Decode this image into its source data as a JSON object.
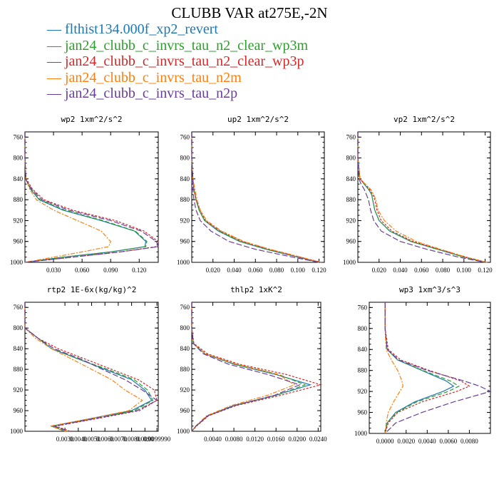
{
  "figure": {
    "title": "CLUBB VAR at275E,-2N"
  },
  "legend": [
    {
      "label": "flthist134.000f_xp2_revert",
      "color": "#1f77b4",
      "dash": "solid"
    },
    {
      "label": "jan24_clubb_c_invrs_tau_n2_clear_wp3m",
      "color": "#2ca02c",
      "dash": "6,3"
    },
    {
      "label": "jan24_clubb_c_invrs_tau_n2_clear_wp3p",
      "color": "#d62728",
      "dash": "3,2"
    },
    {
      "label": "jan24_clubb_c_invrs_tau_n2m",
      "color": "#ff7f0e",
      "dash": "6,2,2,2"
    },
    {
      "label": "jan24_clubb_c_invrs_tau_n2p",
      "color": "#6a3d9a",
      "dash": "8,3"
    }
  ],
  "chart_data": [
    {
      "type": "line",
      "title": "wp2  1xm^2/s^2",
      "xlim": [
        0,
        0.14
      ],
      "ylim": [
        1000,
        750
      ],
      "xticks": [
        0.03,
        0.06,
        0.09,
        0.12
      ],
      "xtick_labels": [
        "0.030",
        "0.060",
        "0.090",
        "0.120"
      ],
      "yticks": [
        760,
        800,
        840,
        880,
        920,
        960,
        1000
      ],
      "y": [
        750,
        800,
        840,
        845,
        860,
        880,
        900,
        920,
        940,
        960,
        970,
        980,
        990,
        1000
      ],
      "series": [
        {
          "x": [
            0,
            0,
            0.001,
            0.002,
            0.006,
            0.015,
            0.04,
            0.08,
            0.115,
            0.127,
            0.126,
            0.09,
            0.04,
            0
          ]
        },
        {
          "x": [
            0,
            0,
            0.001,
            0.002,
            0.006,
            0.016,
            0.042,
            0.082,
            0.116,
            0.128,
            0.127,
            0.09,
            0.04,
            0
          ]
        },
        {
          "x": [
            0,
            0,
            0.001,
            0.003,
            0.008,
            0.02,
            0.05,
            0.095,
            0.125,
            0.14,
            0.138,
            0.1,
            0.05,
            0
          ]
        },
        {
          "x": [
            0,
            0,
            0.001,
            0.002,
            0.005,
            0.012,
            0.03,
            0.055,
            0.08,
            0.09,
            0.088,
            0.06,
            0.03,
            0
          ]
        },
        {
          "x": [
            0,
            0,
            0.001,
            0.002,
            0.007,
            0.018,
            0.046,
            0.09,
            0.122,
            0.138,
            0.14,
            0.1,
            0.05,
            0
          ]
        }
      ]
    },
    {
      "type": "line",
      "title": "up2  1xm^2/s^2",
      "xlim": [
        0,
        0.125
      ],
      "ylim": [
        1000,
        750
      ],
      "xticks": [
        0.02,
        0.04,
        0.06,
        0.08,
        0.1,
        0.12
      ],
      "xtick_labels": [
        "0.020",
        "0.040",
        "0.060",
        "0.080",
        "0.100",
        "0.120"
      ],
      "yticks": [
        760,
        800,
        840,
        880,
        920,
        960,
        1000
      ],
      "y": [
        750,
        800,
        840,
        860,
        880,
        900,
        920,
        940,
        960,
        975,
        990,
        1000
      ],
      "series": [
        {
          "x": [
            0,
            0,
            0.001,
            0.002,
            0.004,
            0.007,
            0.012,
            0.025,
            0.045,
            0.07,
            0.1,
            0.12
          ]
        },
        {
          "x": [
            0,
            0,
            0.001,
            0.002,
            0.004,
            0.007,
            0.012,
            0.026,
            0.046,
            0.071,
            0.1,
            0.12
          ]
        },
        {
          "x": [
            0,
            0,
            0.001,
            0.002,
            0.004,
            0.008,
            0.013,
            0.027,
            0.048,
            0.073,
            0.102,
            0.122
          ]
        },
        {
          "x": [
            0,
            0,
            0.001,
            0.003,
            0.005,
            0.008,
            0.014,
            0.028,
            0.049,
            0.074,
            0.103,
            0.122
          ]
        },
        {
          "x": [
            0,
            0,
            0.001,
            0.001,
            0.002,
            0.004,
            0.008,
            0.018,
            0.035,
            0.06,
            0.095,
            0.12
          ]
        }
      ]
    },
    {
      "type": "line",
      "title": "vp2  1xm^2/s^2",
      "xlim": [
        0,
        0.125
      ],
      "ylim": [
        1000,
        750
      ],
      "xticks": [
        0.02,
        0.04,
        0.06,
        0.08,
        0.1,
        0.12
      ],
      "xtick_labels": [
        "0.020",
        "0.040",
        "0.060",
        "0.080",
        "0.100",
        "0.120"
      ],
      "yticks": [
        760,
        800,
        840,
        880,
        920,
        960,
        1000
      ],
      "y": [
        750,
        800,
        840,
        850,
        860,
        870,
        880,
        890,
        900,
        920,
        940,
        960,
        975,
        990,
        1000
      ],
      "series": [
        {
          "x": [
            0,
            0,
            0.002,
            0.006,
            0.01,
            0.013,
            0.014,
            0.015,
            0.016,
            0.02,
            0.03,
            0.05,
            0.075,
            0.1,
            0.12
          ]
        },
        {
          "x": [
            0,
            0,
            0.002,
            0.006,
            0.01,
            0.013,
            0.014,
            0.015,
            0.016,
            0.02,
            0.03,
            0.05,
            0.075,
            0.1,
            0.12
          ]
        },
        {
          "x": [
            0,
            0,
            0.002,
            0.007,
            0.011,
            0.014,
            0.016,
            0.017,
            0.018,
            0.022,
            0.032,
            0.052,
            0.077,
            0.102,
            0.122
          ]
        },
        {
          "x": [
            0,
            0,
            0.002,
            0.007,
            0.012,
            0.015,
            0.017,
            0.018,
            0.019,
            0.025,
            0.036,
            0.055,
            0.078,
            0.102,
            0.122
          ]
        },
        {
          "x": [
            0,
            0,
            0.001,
            0.003,
            0.006,
            0.008,
            0.01,
            0.011,
            0.012,
            0.015,
            0.022,
            0.04,
            0.065,
            0.095,
            0.12
          ]
        }
      ]
    },
    {
      "type": "line",
      "title": "rtp2  1E-6x(kg/kg)^2",
      "xlim": [
        0,
        0.01
      ],
      "ylim": [
        1000,
        750
      ],
      "xticks": [
        0.003,
        0.004,
        0.005,
        0.006,
        0.007,
        0.008,
        0.009,
        0.0099
      ],
      "xtick_labels": [
        "0.0030",
        "0.0040",
        "0.0050",
        "0.0060",
        "0.0070",
        "0.0080",
        "0.0090",
        "0.0099990"
      ],
      "yticks": [
        760,
        800,
        840,
        880,
        920,
        960,
        1000
      ],
      "y": [
        750,
        800,
        820,
        840,
        860,
        880,
        900,
        920,
        940,
        960,
        975,
        990,
        1000
      ],
      "series": [
        {
          "x": [
            0,
            0,
            0.001,
            0.002,
            0.004,
            0.006,
            0.008,
            0.009,
            0.0095,
            0.008,
            0.005,
            0.002,
            0.003
          ]
        },
        {
          "x": [
            0,
            0,
            0.001,
            0.002,
            0.004,
            0.0062,
            0.0082,
            0.0092,
            0.0096,
            0.0082,
            0.0052,
            0.0021,
            0.0032
          ]
        },
        {
          "x": [
            0,
            0,
            0.001,
            0.0025,
            0.0045,
            0.0065,
            0.0085,
            0.0097,
            0.0099,
            0.0086,
            0.0055,
            0.0023,
            0.0034
          ]
        },
        {
          "x": [
            0,
            0,
            0.0008,
            0.002,
            0.0035,
            0.005,
            0.0065,
            0.0075,
            0.0088,
            0.0078,
            0.005,
            0.0019,
            0.0031
          ]
        },
        {
          "x": [
            0,
            0,
            0.001,
            0.0022,
            0.0042,
            0.0058,
            0.0075,
            0.0088,
            0.0099,
            0.0084,
            0.0053,
            0.0022,
            0.0033
          ]
        }
      ]
    },
    {
      "type": "line",
      "title": "thlp2  1xK^2",
      "xlim": [
        0,
        0.0245
      ],
      "ylim": [
        1000,
        750
      ],
      "xticks": [
        0.004,
        0.008,
        0.012,
        0.016,
        0.02,
        0.024
      ],
      "xtick_labels": [
        "0.0040",
        "0.0080",
        "0.0120",
        "0.0160",
        "0.0200",
        "0.0240"
      ],
      "yticks": [
        760,
        800,
        840,
        880,
        920,
        960,
        1000
      ],
      "y": [
        750,
        800,
        830,
        850,
        870,
        890,
        910,
        930,
        950,
        970,
        990,
        1000
      ],
      "series": [
        {
          "x": [
            0,
            0,
            0.0003,
            0.0025,
            0.008,
            0.016,
            0.0225,
            0.016,
            0.008,
            0.003,
            0.0008,
            0
          ]
        },
        {
          "x": [
            0,
            0,
            0.0003,
            0.0026,
            0.0082,
            0.0165,
            0.0215,
            0.0162,
            0.0082,
            0.0031,
            0.0008,
            0
          ]
        },
        {
          "x": [
            0,
            0,
            0.0004,
            0.003,
            0.009,
            0.018,
            0.0245,
            0.017,
            0.0085,
            0.0032,
            0.0009,
            0
          ]
        },
        {
          "x": [
            0,
            0,
            0.0003,
            0.0026,
            0.0085,
            0.0165,
            0.0195,
            0.0145,
            0.0075,
            0.0028,
            0.0007,
            0
          ]
        },
        {
          "x": [
            0,
            0,
            0.0003,
            0.0022,
            0.007,
            0.0145,
            0.0205,
            0.0158,
            0.0082,
            0.003,
            0.0008,
            0
          ]
        }
      ]
    },
    {
      "type": "line",
      "title": "wp3  1xm^3/s^3",
      "xlim": [
        -0.0015,
        0.01
      ],
      "ylim": [
        1000,
        750
      ],
      "xticks": [
        0.0,
        0.002,
        0.004,
        0.006,
        0.008
      ],
      "xtick_labels": [
        "0.0000",
        "0.0020",
        "0.0040",
        "0.0060",
        "0.0080"
      ],
      "yticks": [
        760,
        800,
        840,
        880,
        920,
        960,
        1000
      ],
      "y": [
        750,
        800,
        840,
        860,
        880,
        900,
        910,
        920,
        940,
        960,
        980,
        1000
      ],
      "series": [
        {
          "x": [
            0,
            0,
            0.0002,
            0.0012,
            0.0035,
            0.0058,
            0.0065,
            0.0055,
            0.0028,
            0.001,
            0.0002,
            0
          ]
        },
        {
          "x": [
            0,
            0,
            0.0002,
            0.0012,
            0.0036,
            0.0062,
            0.007,
            0.006,
            0.003,
            0.0011,
            0.0002,
            0
          ]
        },
        {
          "x": [
            0,
            0,
            0.0003,
            0.0015,
            0.0042,
            0.0072,
            0.008,
            0.0068,
            0.0035,
            0.0012,
            0.0003,
            0
          ]
        },
        {
          "x": [
            0,
            0,
            0.0001,
            0.0006,
            0.0012,
            0.0016,
            0.0017,
            0.0014,
            0.0008,
            0.0003,
            0.0001,
            0
          ]
        },
        {
          "x": [
            0,
            0,
            0.0002,
            0.0013,
            0.004,
            0.0075,
            0.009,
            0.01,
            0.0065,
            0.0035,
            0.001,
            0
          ]
        }
      ]
    }
  ]
}
